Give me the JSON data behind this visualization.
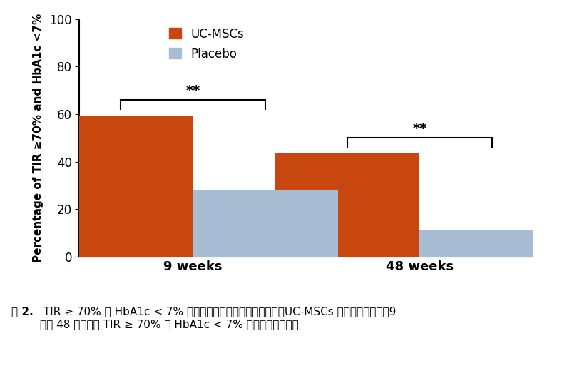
{
  "categories": [
    "9 weeks",
    "48 weeks"
  ],
  "uc_mscs_values": [
    59.5,
    43.5
  ],
  "placebo_values": [
    28.0,
    11.0
  ],
  "uc_mscs_color": "#C8470E",
  "placebo_color": "#A8BDD4",
  "bar_width": 0.32,
  "ylim": [
    0,
    100
  ],
  "yticks": [
    0,
    20,
    40,
    60,
    80,
    100
  ],
  "ylabel": "Percentage of TIR ≥70% and HbA1c <7%",
  "legend_uc": "UC-MSCs",
  "legend_placebo": "Placebo",
  "sig_labels": [
    "**",
    "**"
  ],
  "caption_bold": "图 2.",
  "caption_normal": " TIR ≥ 70% 和 HbA1c < 7% 的患者百分比。与安慰剂组相比，UC-MSCs 组中有更多患者在9\n周和 48 周时达到 TIR ≥ 70% 和 HbA1c < 7% 的血糖控制目标。",
  "background_color": "#ffffff",
  "fig_width": 7.95,
  "fig_height": 5.37,
  "dpi": 100
}
